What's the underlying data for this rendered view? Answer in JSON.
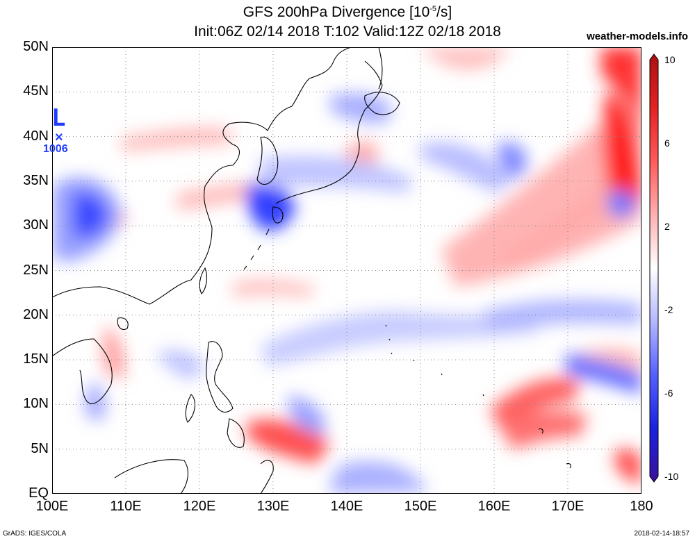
{
  "header": {
    "title_line1": "GFS 200hPa Divergence [10",
    "title_exp": "-5",
    "title_unit": "/s]",
    "title_line2": "Init:06Z 02/14 2018 T:102 Valid:12Z 02/18 2018",
    "site": "weather-models.info"
  },
  "map": {
    "lon_range": [
      100,
      180
    ],
    "lat_range": [
      0,
      50
    ],
    "lat_labels": [
      "50N",
      "45N",
      "40N",
      "35N",
      "30N",
      "25N",
      "20N",
      "15N",
      "10N",
      "5N",
      "EQ"
    ],
    "lon_labels": [
      "100E",
      "110E",
      "120E",
      "130E",
      "140E",
      "150E",
      "160E",
      "170E",
      "180"
    ],
    "colors": {
      "positive": "#ff1a1a",
      "negative": "#1a2cff",
      "neutral": "#ffffff",
      "coast": "#000000",
      "grid": "#888888"
    }
  },
  "low": {
    "symbol": "L",
    "marker": "×",
    "pressure": "1006",
    "lon": 101,
    "lat": 39.5
  },
  "colorbar": {
    "labels": [
      "10",
      "6",
      "2",
      "-2",
      "-6",
      "-10"
    ],
    "stops": [
      "#aa1010",
      "#e52222",
      "#ff5a5a",
      "#ffb0b0",
      "#ffffff",
      "#b3b8ff",
      "#5560ff",
      "#1a22e0",
      "#3a109a"
    ]
  },
  "footer": {
    "left": "GrADS: IGES/COLA",
    "right": "2018-02-14-18:57"
  }
}
